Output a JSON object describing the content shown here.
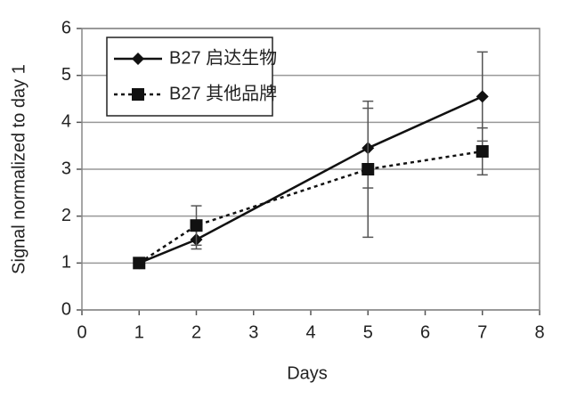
{
  "chart_data": {
    "type": "line",
    "x_label": "Days",
    "y_label": "Signal normalized to day 1",
    "xlim": [
      0,
      8
    ],
    "xticks": [
      0,
      1,
      2,
      3,
      4,
      5,
      6,
      7,
      8
    ],
    "ylim": [
      0,
      6
    ],
    "yticks": [
      0,
      1,
      2,
      3,
      4,
      5,
      6
    ],
    "grid": true,
    "legend": "upper left",
    "series": [
      {
        "name": "B27 启达生物",
        "color": "#111111",
        "line": "solid",
        "marker": "diamond",
        "x": [
          1,
          2,
          5,
          7
        ],
        "values": [
          1,
          1.5,
          3.45,
          4.55
        ],
        "errors": [
          0,
          0.2,
          0.85,
          0.95
        ]
      },
      {
        "name": "B27 其他品牌",
        "color": "#111111",
        "line": "dotted",
        "marker": "square",
        "x": [
          1,
          2,
          5,
          7
        ],
        "values": [
          1,
          1.8,
          3.0,
          3.38
        ],
        "errors": [
          0,
          0.42,
          1.45,
          0.5
        ]
      }
    ]
  }
}
